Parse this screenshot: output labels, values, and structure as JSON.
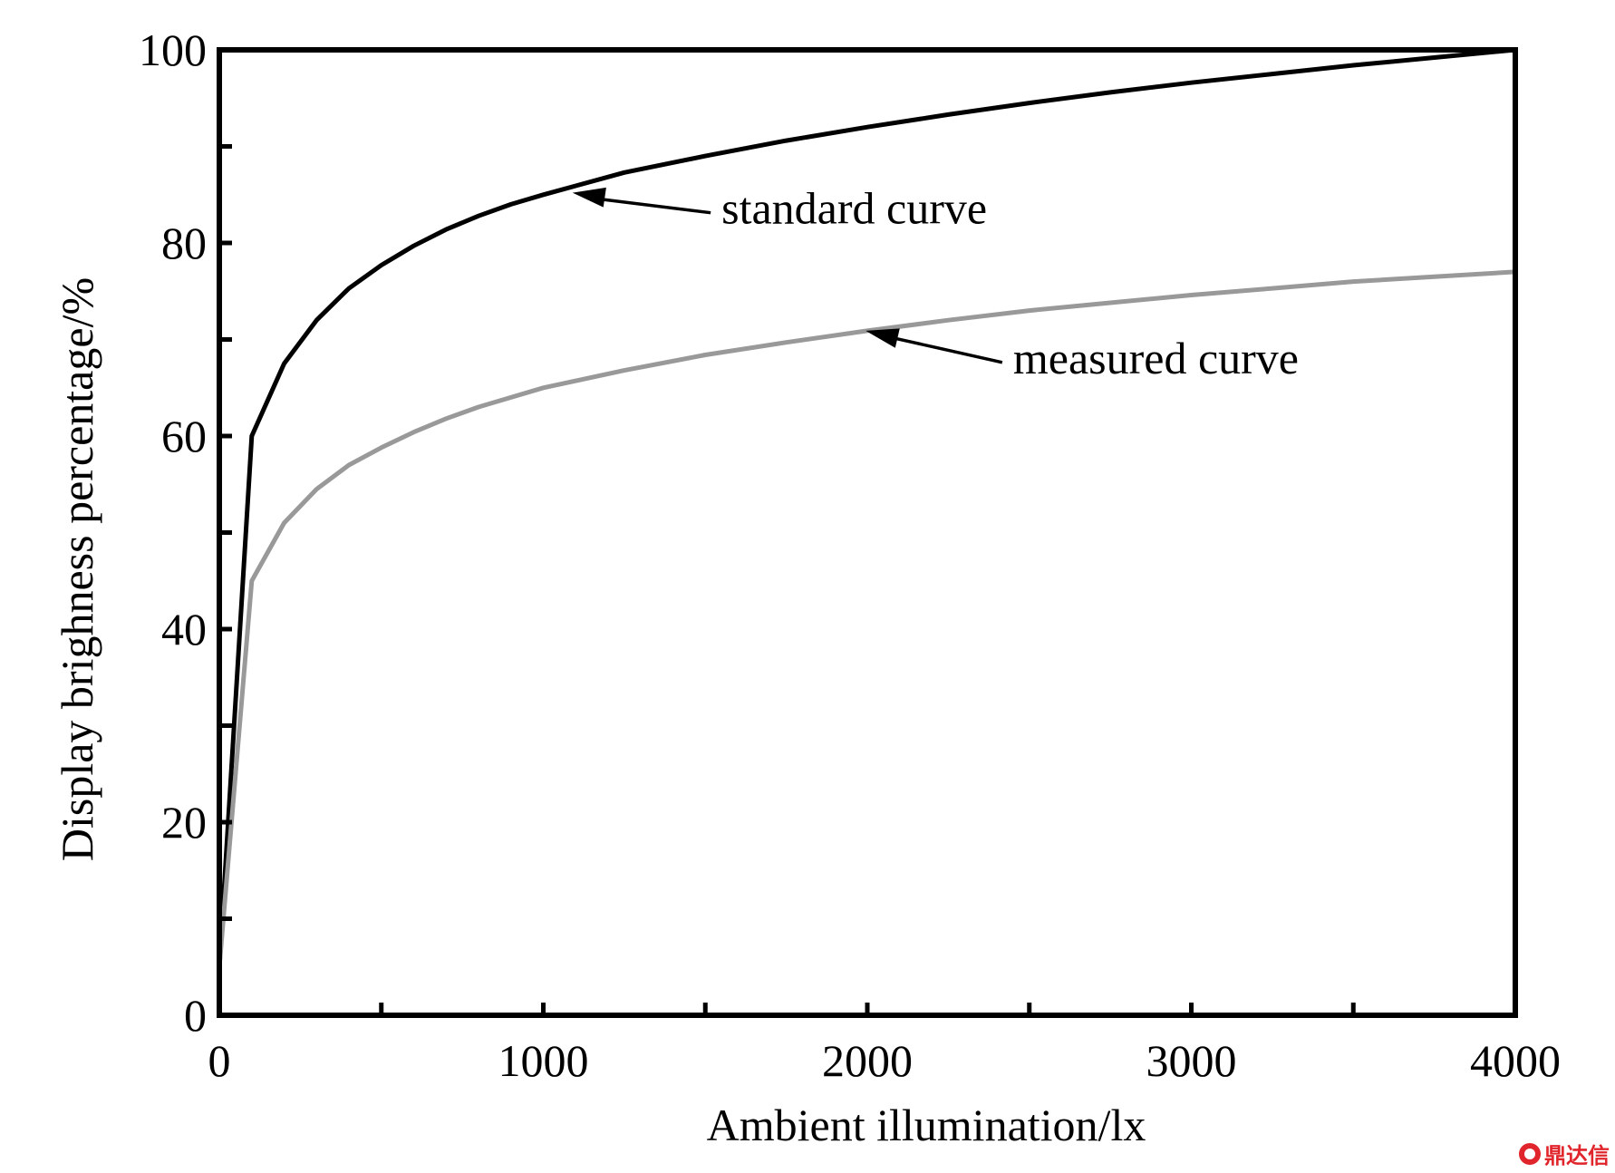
{
  "chart_data": {
    "type": "line",
    "title": "",
    "xlabel": "Ambient illumination/lx",
    "ylabel": "Display brighness percentage/%",
    "xlim": [
      0,
      4000
    ],
    "ylim": [
      0,
      100
    ],
    "xticks": [
      0,
      1000,
      2000,
      3000,
      4000
    ],
    "yticks": [
      0,
      20,
      40,
      60,
      80,
      100
    ],
    "grid": false,
    "legend": "none",
    "series": [
      {
        "name": "standard curve",
        "color": "#000000",
        "x": [
          0,
          100,
          200,
          300,
          400,
          500,
          600,
          700,
          800,
          900,
          1000,
          1250,
          1500,
          1750,
          2000,
          2250,
          2500,
          2750,
          3000,
          3250,
          3500,
          3750,
          4000
        ],
        "y": [
          5,
          60,
          67.5,
          72,
          75.3,
          77.7,
          79.7,
          81.4,
          82.8,
          84,
          85,
          87.3,
          89,
          90.6,
          92,
          93.3,
          94.5,
          95.6,
          96.6,
          97.5,
          98.4,
          99.2,
          100
        ]
      },
      {
        "name": "measured curve",
        "color": "#999999",
        "x": [
          0,
          100,
          200,
          300,
          400,
          500,
          600,
          700,
          800,
          900,
          1000,
          1250,
          1500,
          1750,
          2000,
          2250,
          2500,
          2750,
          3000,
          3250,
          3500,
          3750,
          4000
        ],
        "y": [
          5,
          45,
          51,
          54.5,
          57,
          58.8,
          60.4,
          61.8,
          63,
          64,
          65,
          66.8,
          68.4,
          69.7,
          70.9,
          72,
          73,
          73.8,
          74.6,
          75.3,
          76,
          76.5,
          77
        ]
      }
    ],
    "annotations": [
      {
        "text": "standard curve",
        "x": 1550,
        "y": 82,
        "arrow_to": [
          1090,
          85.2
        ]
      },
      {
        "text": "measured curve",
        "x": 2450,
        "y": 66.5,
        "arrow_to": [
          1995,
          70.9
        ]
      }
    ]
  },
  "watermark": {
    "text": "鼎达信"
  }
}
